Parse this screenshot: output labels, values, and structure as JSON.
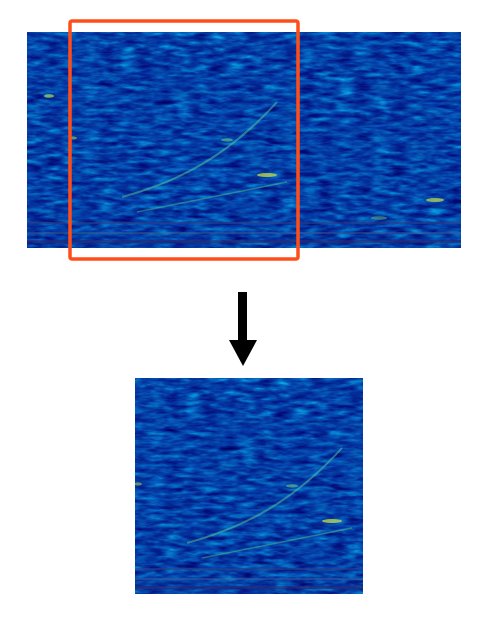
{
  "diagram": {
    "source_image": {
      "icon": "spectrogram-image",
      "colormap": [
        "#2b1160",
        "#31478a",
        "#2b7f8e",
        "#22a884",
        "#7ad151",
        "#d2e21b"
      ]
    },
    "crop_box": {
      "icon": "crop-rectangle-icon",
      "color": "#ff4d1a"
    },
    "arrow": {
      "icon": "arrow-down-icon",
      "color": "#000000"
    },
    "cropped_image": {
      "icon": "spectrogram-crop-image"
    }
  }
}
